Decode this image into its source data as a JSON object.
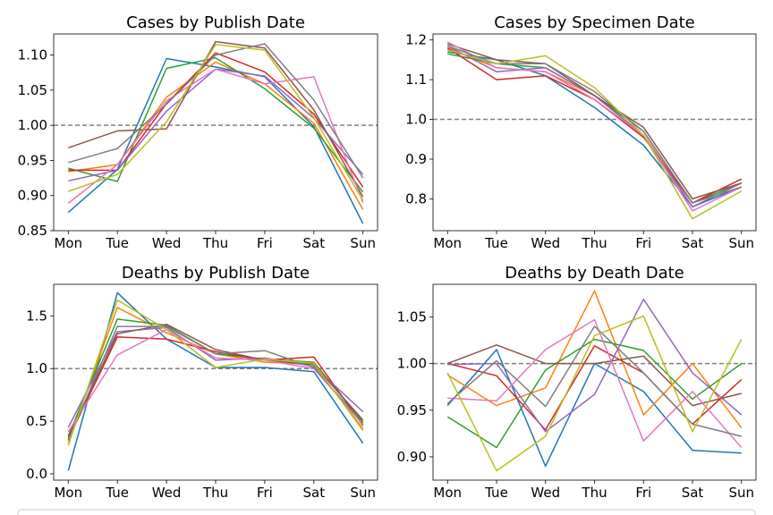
{
  "colors": [
    "#1f77b4",
    "#ff7f0e",
    "#2ca02c",
    "#d62728",
    "#9467bd",
    "#8c564b",
    "#e377c2",
    "#7f7f7f",
    "#bcbd22"
  ],
  "chart_data": [
    {
      "type": "line",
      "title": "Cases by Publish Date",
      "categories": [
        "Mon",
        "Tue",
        "Wed",
        "Thu",
        "Fri",
        "Sat",
        "Sun"
      ],
      "ylim": [
        0.85,
        1.13
      ],
      "yticks": [
        0.85,
        0.9,
        0.95,
        1.0,
        1.05,
        1.1
      ],
      "ytick_labels": [
        "0.85",
        "0.90",
        "0.95",
        "1.00",
        "1.05",
        "1.10"
      ],
      "reference_line": 1.0,
      "series": [
        {
          "values": [
            0.876,
            0.937,
            1.095,
            1.083,
            1.069,
            0.998,
            0.86
          ]
        },
        {
          "values": [
            0.934,
            0.944,
            1.04,
            1.09,
            1.059,
            1.003,
            0.88
          ]
        },
        {
          "values": [
            0.939,
            0.92,
            1.081,
            1.096,
            1.052,
            0.996,
            0.905
          ]
        },
        {
          "values": [
            0.936,
            0.936,
            1.031,
            1.103,
            1.076,
            1.016,
            0.912
          ]
        },
        {
          "values": [
            0.921,
            0.936,
            1.02,
            1.08,
            1.07,
            1.01,
            0.93
          ]
        },
        {
          "values": [
            0.968,
            0.992,
            0.995,
            1.119,
            1.11,
            1.022,
            0.898
          ]
        },
        {
          "values": [
            0.889,
            0.944,
            1.035,
            1.08,
            1.059,
            1.069,
            0.89
          ]
        },
        {
          "values": [
            0.947,
            0.967,
            1.03,
            1.1,
            1.116,
            1.036,
            0.925
          ]
        },
        {
          "values": [
            0.906,
            0.93,
            1.005,
            1.115,
            1.107,
            1.011,
            0.893
          ]
        }
      ]
    },
    {
      "type": "line",
      "title": "Cases by Specimen Date",
      "categories": [
        "Mon",
        "Tue",
        "Wed",
        "Thu",
        "Fri",
        "Sat",
        "Sun"
      ],
      "ylim": [
        0.72,
        1.215
      ],
      "yticks": [
        0.8,
        0.9,
        1.0,
        1.1,
        1.2
      ],
      "ytick_labels": [
        "0.8",
        "0.9",
        "1.0",
        "1.1",
        "1.2"
      ],
      "reference_line": 1.0,
      "series": [
        {
          "values": [
            1.17,
            1.15,
            1.11,
            1.03,
            0.935,
            0.78,
            0.83
          ]
        },
        {
          "values": [
            1.18,
            1.13,
            1.12,
            1.06,
            0.96,
            0.79,
            0.83
          ]
        },
        {
          "values": [
            1.165,
            1.14,
            1.13,
            1.06,
            0.97,
            0.79,
            0.84
          ]
        },
        {
          "values": [
            1.18,
            1.1,
            1.11,
            1.05,
            0.955,
            0.79,
            0.85
          ]
        },
        {
          "values": [
            1.185,
            1.12,
            1.13,
            1.06,
            0.96,
            0.78,
            0.84
          ]
        },
        {
          "values": [
            1.19,
            1.15,
            1.14,
            1.06,
            0.98,
            0.8,
            0.84
          ]
        },
        {
          "values": [
            1.195,
            1.13,
            1.12,
            1.05,
            0.96,
            0.77,
            0.83
          ]
        },
        {
          "values": [
            1.185,
            1.14,
            1.14,
            1.07,
            0.97,
            0.79,
            0.83
          ]
        },
        {
          "values": [
            1.175,
            1.14,
            1.16,
            1.08,
            0.96,
            0.75,
            0.82
          ]
        }
      ]
    },
    {
      "type": "line",
      "title": "Deaths by Publish Date",
      "categories": [
        "Mon",
        "Tue",
        "Wed",
        "Thu",
        "Fri",
        "Sat",
        "Sun"
      ],
      "ylim": [
        -0.06,
        1.8
      ],
      "yticks": [
        0.0,
        0.5,
        1.0,
        1.5
      ],
      "ytick_labels": [
        "0.0",
        "0.5",
        "1.0",
        "1.5"
      ],
      "reference_line": 1.0,
      "series": [
        {
          "values": [
            0.03,
            1.72,
            1.28,
            1.01,
            1.01,
            0.97,
            0.29
          ]
        },
        {
          "values": [
            0.3,
            1.58,
            1.34,
            1.14,
            1.06,
            1.04,
            0.43
          ]
        },
        {
          "values": [
            0.36,
            1.47,
            1.41,
            1.14,
            1.09,
            1.06,
            0.49
          ]
        },
        {
          "values": [
            0.33,
            1.3,
            1.28,
            1.16,
            1.08,
            1.11,
            0.46
          ]
        },
        {
          "values": [
            0.44,
            1.35,
            1.39,
            1.08,
            1.1,
            1.02,
            0.59
          ]
        },
        {
          "values": [
            0.35,
            1.33,
            1.42,
            1.18,
            1.08,
            1.04,
            0.51
          ]
        },
        {
          "values": [
            0.4,
            1.13,
            1.37,
            1.1,
            1.08,
            1.0,
            0.47
          ]
        },
        {
          "values": [
            0.32,
            1.4,
            1.4,
            1.14,
            1.17,
            1.01,
            0.48
          ]
        },
        {
          "values": [
            0.27,
            1.65,
            1.37,
            1.01,
            1.09,
            1.05,
            0.41
          ]
        }
      ]
    },
    {
      "type": "line",
      "title": "Deaths by Death Date",
      "categories": [
        "Mon",
        "Tue",
        "Wed",
        "Thu",
        "Fri",
        "Sat",
        "Sun"
      ],
      "ylim": [
        0.875,
        1.085
      ],
      "yticks": [
        0.9,
        0.95,
        1.0,
        1.05
      ],
      "ytick_labels": [
        "0.90",
        "0.95",
        "1.00",
        "1.05"
      ],
      "reference_line": 1.0,
      "series": [
        {
          "values": [
            0.955,
            1.015,
            0.89,
            1.0,
            0.97,
            0.907,
            0.904
          ]
        },
        {
          "values": [
            0.988,
            0.955,
            0.974,
            1.078,
            0.945,
            1.0,
            0.931
          ]
        },
        {
          "values": [
            0.943,
            0.91,
            0.993,
            1.026,
            1.014,
            0.962,
            1.0
          ]
        },
        {
          "values": [
            1.0,
            0.987,
            0.929,
            1.019,
            0.99,
            0.935,
            0.983
          ]
        },
        {
          "values": [
            0.999,
            1.0,
            0.927,
            0.967,
            1.069,
            0.99,
            0.945
          ]
        },
        {
          "values": [
            1.0,
            1.02,
            1.0,
            1.0,
            1.008,
            0.955,
            0.968
          ]
        },
        {
          "values": [
            0.963,
            0.96,
            1.015,
            1.047,
            0.917,
            0.97,
            0.91
          ]
        },
        {
          "values": [
            0.957,
            1.003,
            0.954,
            1.04,
            0.99,
            0.935,
            0.922
          ]
        },
        {
          "values": [
            0.99,
            0.885,
            0.922,
            1.03,
            1.051,
            0.927,
            1.026
          ]
        }
      ]
    }
  ]
}
